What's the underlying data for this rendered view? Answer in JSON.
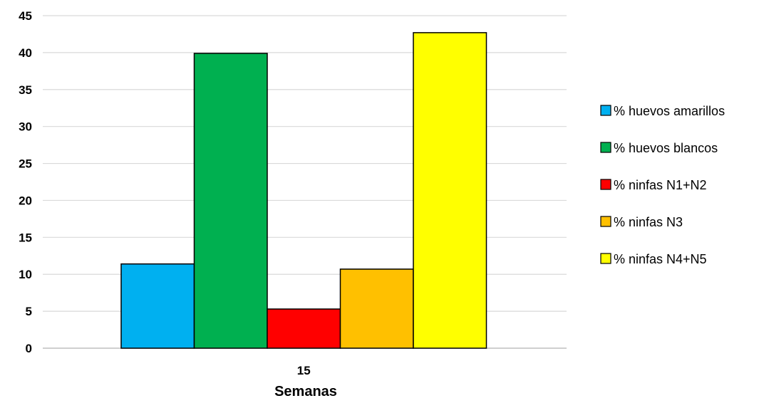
{
  "chart_data": {
    "type": "bar",
    "categories": [
      "15"
    ],
    "xlabel": "Semanas",
    "ylabel": "",
    "title": "",
    "ylim": [
      0,
      45
    ],
    "yticks": [
      0,
      5,
      10,
      15,
      20,
      25,
      30,
      35,
      40,
      45
    ],
    "grid": "horizontal",
    "legend_position": "right",
    "series": [
      {
        "name": "% huevos amarillos",
        "values": [
          11.4
        ],
        "color": "#00b0f0"
      },
      {
        "name": "% huevos blancos",
        "values": [
          39.9
        ],
        "color": "#00b050"
      },
      {
        "name": "% ninfas N1+N2",
        "values": [
          5.3
        ],
        "color": "#ff0000"
      },
      {
        "name": "% ninfas N3",
        "values": [
          10.7
        ],
        "color": "#ffc000"
      },
      {
        "name": "% ninfas N4+N5",
        "values": [
          42.7
        ],
        "color": "#ffff00"
      }
    ]
  }
}
